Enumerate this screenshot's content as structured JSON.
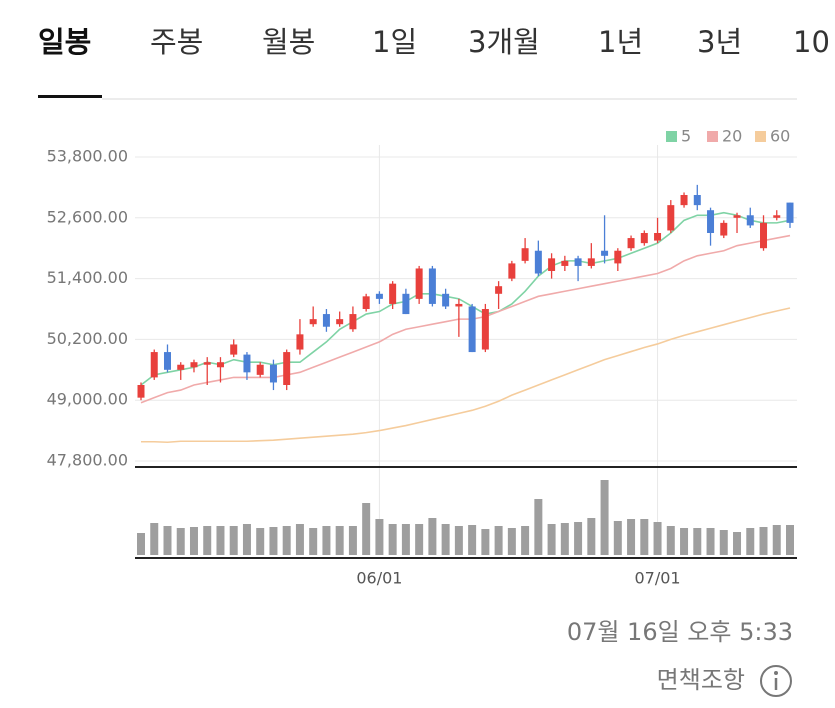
{
  "tabs": [
    "일봉",
    "주봉",
    "월봉",
    "1일",
    "3개월",
    "1년",
    "3년",
    "10"
  ],
  "selected_tab": 0,
  "timestamp": "07월 16일 오후 5:33",
  "disclaimer": "면책조항",
  "chart_data": {
    "type": "candlestick",
    "categories": [
      null,
      null,
      null,
      null,
      null,
      null,
      null,
      null,
      null,
      null,
      null,
      null,
      null,
      null,
      null,
      null,
      null,
      null,
      "06/01",
      null,
      null,
      null,
      null,
      null,
      null,
      null,
      null,
      null,
      null,
      null,
      null,
      null,
      null,
      null,
      null,
      null,
      null,
      null,
      null,
      "07/01",
      null,
      null,
      null,
      null,
      null,
      null,
      null,
      null,
      null,
      null
    ],
    "open": [
      49050,
      49450,
      49950,
      49600,
      49650,
      49700,
      49650,
      49900,
      49900,
      49500,
      49700,
      49300,
      50000,
      50500,
      50700,
      50500,
      50400,
      50800,
      51100,
      50900,
      51100,
      51000,
      51600,
      51100,
      50850,
      50850,
      50000,
      51100,
      51400,
      51750,
      51950,
      51550,
      51650,
      51800,
      51650,
      51950,
      51700,
      52000,
      52100,
      52150,
      52350,
      52850,
      53050,
      52750,
      52250,
      52600,
      52650,
      52000,
      52600,
      52900
    ],
    "high": [
      49350,
      50000,
      50100,
      49750,
      49800,
      49850,
      49850,
      50200,
      49950,
      49750,
      49800,
      50000,
      50600,
      50850,
      50800,
      50750,
      50850,
      51100,
      51150,
      51350,
      51200,
      51650,
      51650,
      51200,
      51000,
      50900,
      50900,
      51350,
      51750,
      52200,
      52150,
      51900,
      51850,
      51850,
      52100,
      52650,
      52000,
      52250,
      52350,
      52600,
      52950,
      53100,
      53250,
      52800,
      52550,
      52700,
      52800,
      52650,
      52750,
      52900
    ],
    "low": [
      49000,
      49400,
      49550,
      49400,
      49550,
      49300,
      49350,
      49850,
      49400,
      49450,
      49200,
      49200,
      49900,
      50450,
      50350,
      50450,
      50350,
      50750,
      50900,
      50800,
      50700,
      50900,
      50850,
      50800,
      50250,
      49950,
      49950,
      50800,
      51350,
      51700,
      51450,
      51400,
      51550,
      51350,
      51600,
      51700,
      51550,
      51950,
      52050,
      52100,
      52300,
      52800,
      52750,
      52050,
      52200,
      52300,
      52400,
      51950,
      52550,
      52400
    ],
    "close": [
      49300,
      49950,
      49600,
      49700,
      49750,
      49750,
      49750,
      50100,
      49550,
      49700,
      49350,
      49950,
      50300,
      50600,
      50450,
      50600,
      50700,
      51050,
      51000,
      51300,
      50700,
      51600,
      50900,
      50850,
      50900,
      49950,
      50800,
      51250,
      51700,
      52000,
      51500,
      51800,
      51750,
      51650,
      51800,
      51850,
      51950,
      52200,
      52300,
      52300,
      52850,
      53050,
      52850,
      52300,
      52500,
      52650,
      52450,
      52500,
      52650,
      52500
    ],
    "up_color": "#e8403c",
    "down_color": "#4b7fd6",
    "series": [
      {
        "name": "5",
        "color": "#7fd3a5",
        "values": [
          49300,
          49500,
          49550,
          49600,
          49650,
          49750,
          49700,
          49800,
          49750,
          49750,
          49700,
          49750,
          49750,
          49950,
          50150,
          50400,
          50550,
          50700,
          50750,
          50900,
          50950,
          51100,
          51100,
          51050,
          51000,
          50850,
          50700,
          50750,
          50900,
          51150,
          51450,
          51650,
          51750,
          51750,
          51700,
          51750,
          51800,
          51900,
          52000,
          52100,
          52300,
          52550,
          52650,
          52650,
          52700,
          52650,
          52550,
          52500,
          52500,
          52550
        ]
      },
      {
        "name": "20",
        "color": "#f0aaaa",
        "values": [
          48950,
          49050,
          49150,
          49200,
          49300,
          49350,
          49400,
          49450,
          49450,
          49450,
          49450,
          49500,
          49550,
          49650,
          49750,
          49850,
          49950,
          50050,
          50150,
          50300,
          50400,
          50450,
          50500,
          50550,
          50600,
          50600,
          50650,
          50750,
          50850,
          50950,
          51050,
          51100,
          51150,
          51200,
          51250,
          51300,
          51350,
          51400,
          51450,
          51500,
          51600,
          51750,
          51850,
          51900,
          51950,
          52050,
          52100,
          52150,
          52200,
          52250
        ]
      },
      {
        "name": "60",
        "color": "#f5cc9c",
        "values": [
          48180,
          48180,
          48170,
          48190,
          48190,
          48190,
          48190,
          48190,
          48190,
          48200,
          48210,
          48230,
          48250,
          48270,
          48290,
          48310,
          48330,
          48360,
          48400,
          48450,
          48500,
          48560,
          48620,
          48680,
          48740,
          48800,
          48880,
          48980,
          49100,
          49200,
          49300,
          49400,
          49500,
          49600,
          49700,
          49800,
          49880,
          49960,
          50040,
          50110,
          50200,
          50280,
          50350,
          50420,
          50490,
          50560,
          50630,
          50700,
          50760,
          50820
        ]
      }
    ],
    "volume": {
      "color": "#9e9e9e",
      "ylim": [
        0,
        80
      ],
      "values": [
        22,
        32,
        29,
        27,
        28,
        29,
        29,
        29,
        31,
        27,
        28,
        29,
        31,
        27,
        29,
        29,
        29,
        52,
        36,
        31,
        31,
        31,
        37,
        31,
        29,
        30,
        26,
        29,
        27,
        29,
        56,
        31,
        32,
        33,
        37,
        75,
        34,
        36,
        36,
        33,
        29,
        27,
        27,
        27,
        25,
        23,
        27,
        28,
        30,
        30
      ]
    },
    "ylim": [
      47800,
      53800
    ],
    "yticks": [
      {
        "value": 53800,
        "label": "53,800.00"
      },
      {
        "value": 52600,
        "label": "52,600.00"
      },
      {
        "value": 51400,
        "label": "51,400.00"
      },
      {
        "value": 50200,
        "label": "50,200.00"
      },
      {
        "value": 49000,
        "label": "49,000.00"
      },
      {
        "value": 47800,
        "label": "47,800.00"
      }
    ],
    "grid": true,
    "legend": "top-right"
  }
}
